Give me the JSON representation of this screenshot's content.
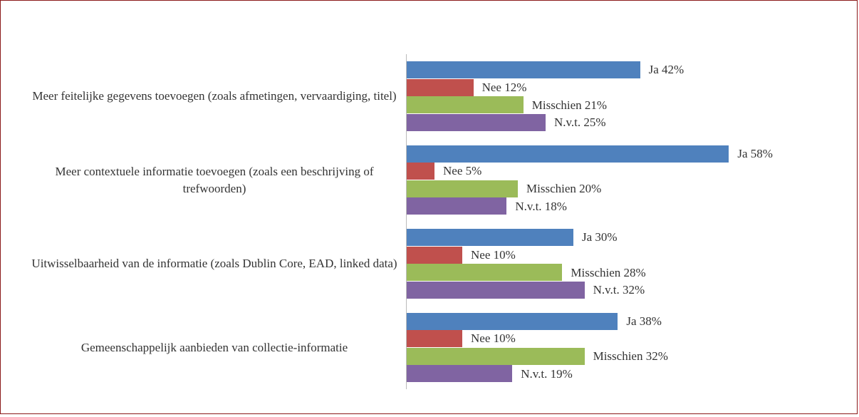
{
  "chart_data": {
    "type": "bar",
    "orientation": "horizontal",
    "categories": [
      "Meer feitelijke gegevens toevoegen (zoals afmetingen, vervaardiging, titel)",
      "Meer contextuele informatie toevoegen (zoals een beschrijving of trefwoorden)",
      "Uitwisselbaarheid van de informatie (zoals Dublin Core, EAD, linked data)",
      "Gemeenschappelijk aanbieden van collectie-informatie"
    ],
    "series": [
      {
        "color": "#4f81bd",
        "values": [
          42,
          58,
          30,
          38
        ],
        "value_labels": [
          "Ja 42%",
          "Ja 58%",
          "Ja 30%",
          "Ja 38%"
        ]
      },
      {
        "color": "#c0504d",
        "values": [
          12,
          5,
          10,
          10
        ],
        "value_labels": [
          "Nee 12%",
          "Nee 5%",
          "Nee 10%",
          "Nee 10%"
        ]
      },
      {
        "color": "#9bbb59",
        "values": [
          21,
          20,
          28,
          32
        ],
        "value_labels": [
          "Misschien 21%",
          "Misschien 20%",
          "Misschien 28%",
          "Misschien 32%"
        ]
      },
      {
        "color": "#8064a2",
        "values": [
          25,
          18,
          32,
          19
        ],
        "value_labels": [
          "N.v.t. 25%",
          "N.v.t. 18%",
          "N.v.t. 32%",
          "N.v.t. 19%"
        ]
      }
    ]
  }
}
